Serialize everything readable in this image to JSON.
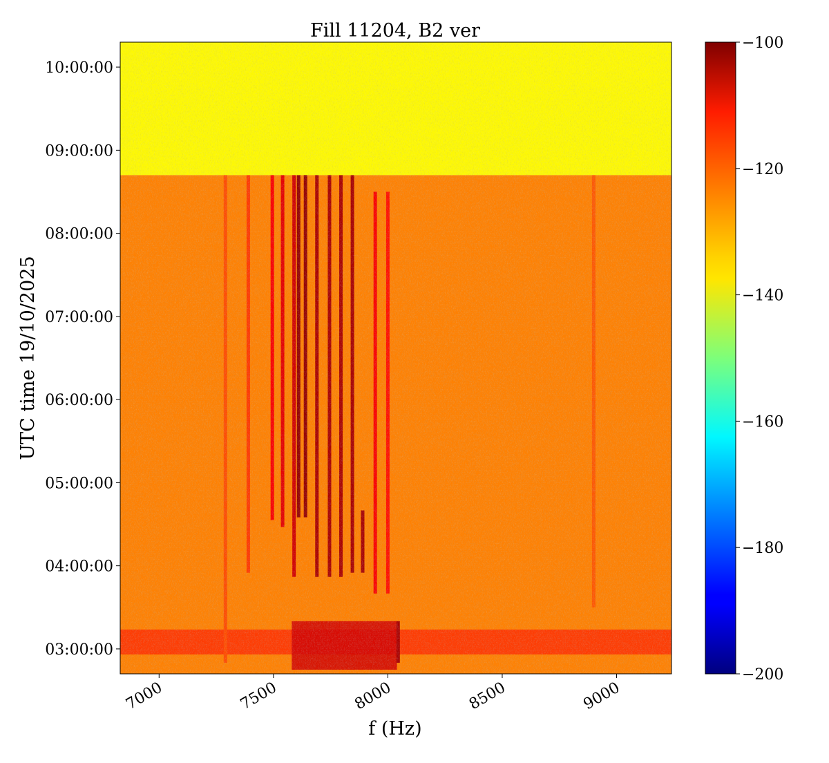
{
  "chart_data": {
    "type": "heatmap",
    "title": "Fill 11204, B2 ver",
    "xlabel": "f (Hz)",
    "ylabel": "UTC time 19/10/2025",
    "xlim": [
      6830,
      9240
    ],
    "ylim": [
      "02:42:00",
      "10:18:00"
    ],
    "x_ticks": [
      "7000",
      "7500",
      "8000",
      "8500",
      "9000"
    ],
    "x_tick_values": [
      7000,
      7500,
      8000,
      8500,
      9000
    ],
    "y_ticks": [
      "03:00:00",
      "04:00:00",
      "05:00:00",
      "06:00:00",
      "07:00:00",
      "08:00:00",
      "09:00:00",
      "10:00:00"
    ],
    "colorbar": {
      "colormap": "jet",
      "range": [
        -200,
        -100
      ],
      "ticks": [
        "−100",
        "−120",
        "−140",
        "−160",
        "−180",
        "−200"
      ],
      "tick_values": [
        -100,
        -120,
        -140,
        -160,
        -180,
        -200
      ]
    },
    "regions": [
      {
        "from": "08:42:00",
        "to": "10:18:00",
        "f_min": 6830,
        "f_max": 9240,
        "level_dB": -137
      },
      {
        "from": "02:42:00",
        "to": "08:42:00",
        "f_min": 6830,
        "f_max": 9240,
        "level_dB": -125
      }
    ],
    "lines": [
      {
        "f": 7495,
        "start": "04:33:00",
        "end": "08:42:00",
        "level_dB": -112
      },
      {
        "f": 7540,
        "start": "04:28:00",
        "end": "08:42:00",
        "level_dB": -110
      },
      {
        "f": 7590,
        "start": "03:52:00",
        "end": "08:42:00",
        "level_dB": -108
      },
      {
        "f": 7610,
        "start": "04:35:00",
        "end": "08:42:00",
        "level_dB": -102
      },
      {
        "f": 7640,
        "start": "04:35:00",
        "end": "08:42:00",
        "level_dB": -102
      },
      {
        "f": 7690,
        "start": "03:52:00",
        "end": "08:42:00",
        "level_dB": -104
      },
      {
        "f": 7745,
        "start": "03:52:00",
        "end": "08:42:00",
        "level_dB": -104
      },
      {
        "f": 7795,
        "start": "03:52:00",
        "end": "08:42:00",
        "level_dB": -104
      },
      {
        "f": 7845,
        "start": "03:55:00",
        "end": "08:42:00",
        "level_dB": -104
      },
      {
        "f": 7890,
        "start": "03:55:00",
        "end": "04:40:00",
        "level_dB": -104
      },
      {
        "f": 7945,
        "start": "03:40:00",
        "end": "08:30:00",
        "level_dB": -112
      },
      {
        "f": 8000,
        "start": "03:40:00",
        "end": "08:30:00",
        "level_dB": -114
      },
      {
        "f": 7390,
        "start": "03:55:00",
        "end": "08:42:00",
        "level_dB": -118
      },
      {
        "f": 7290,
        "start": "02:50:00",
        "end": "08:42:00",
        "level_dB": -120
      },
      {
        "f": 8900,
        "start": "03:30:00",
        "end": "08:42:00",
        "level_dB": -121
      },
      {
        "f": 8045,
        "start": "02:50:00",
        "end": "03:20:00",
        "level_dB": -104
      }
    ],
    "bands": [
      {
        "from": "02:56:00",
        "to": "03:14:00",
        "f_min": 6830,
        "f_max": 9240,
        "level_dB": -117
      },
      {
        "from": "02:45:00",
        "to": "03:20:00",
        "f_min": 7580,
        "f_max": 8040,
        "level_dB": -108
      }
    ]
  }
}
